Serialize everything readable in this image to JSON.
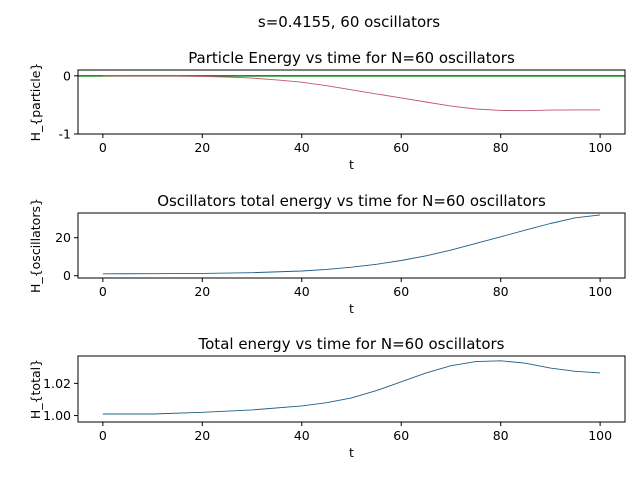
{
  "figure": {
    "suptitle": "s=0.4155, 60 oscillators"
  },
  "chart_data": [
    {
      "type": "line",
      "title": "Particle Energy vs time for N=60 oscillators",
      "xlabel": "t",
      "ylabel": "H_{particle}",
      "xlim": [
        -5,
        105
      ],
      "ylim": [
        -1,
        0.1
      ],
      "xticks": [
        0,
        20,
        40,
        60,
        80,
        100
      ],
      "yticks": [
        -1,
        0
      ],
      "grid": false,
      "colors": {
        "series": "#c0566e",
        "reference_line": "#008000"
      },
      "reference_line": {
        "y": 0
      },
      "series": [
        {
          "x": [
            0,
            5,
            10,
            15,
            20,
            25,
            30,
            35,
            40,
            45,
            50,
            55,
            60,
            65,
            70,
            75,
            80,
            85,
            90,
            95,
            100
          ],
          "y": [
            0,
            -0.005,
            -0.005,
            -0.005,
            -0.01,
            -0.02,
            -0.04,
            -0.07,
            -0.11,
            -0.17,
            -0.24,
            -0.31,
            -0.38,
            -0.45,
            -0.52,
            -0.57,
            -0.595,
            -0.6,
            -0.59,
            -0.585,
            -0.585
          ]
        }
      ]
    },
    {
      "type": "line",
      "title": "Oscillators total energy vs time for N=60 oscillators",
      "xlabel": "t",
      "ylabel": "H_{oscillators}",
      "xlim": [
        -5,
        105
      ],
      "ylim": [
        -1.2,
        33
      ],
      "xticks": [
        0,
        20,
        40,
        60,
        80,
        100
      ],
      "yticks": [
        0,
        20
      ],
      "grid": false,
      "colors": {
        "series": "#1f5f87"
      },
      "series": [
        {
          "x": [
            0,
            10,
            20,
            30,
            40,
            45,
            50,
            55,
            60,
            65,
            70,
            75,
            80,
            85,
            90,
            95,
            100
          ],
          "y": [
            1,
            1.05,
            1.2,
            1.6,
            2.5,
            3.3,
            4.5,
            6.0,
            8.0,
            10.5,
            13.5,
            17.0,
            20.5,
            24.0,
            27.5,
            30.5,
            32.0
          ]
        }
      ]
    },
    {
      "type": "line",
      "title": "Total energy vs time for N=60 oscillators",
      "xlabel": "t",
      "ylabel": "H_{total}",
      "xlim": [
        -5,
        105
      ],
      "ylim": [
        0.996,
        1.037
      ],
      "xticks": [
        0,
        20,
        40,
        60,
        80,
        100
      ],
      "yticks": [
        1.0,
        1.02
      ],
      "ytick_labels": [
        "1.00",
        "1.02"
      ],
      "grid": false,
      "colors": {
        "series": "#1f5f87"
      },
      "series": [
        {
          "x": [
            0,
            10,
            20,
            30,
            40,
            45,
            50,
            55,
            60,
            65,
            70,
            75,
            80,
            85,
            90,
            95,
            100
          ],
          "y": [
            1.001,
            1.001,
            1.002,
            1.0035,
            1.006,
            1.008,
            1.011,
            1.0155,
            1.021,
            1.0265,
            1.031,
            1.0335,
            1.034,
            1.0325,
            1.0295,
            1.0275,
            1.0265
          ]
        }
      ]
    }
  ]
}
